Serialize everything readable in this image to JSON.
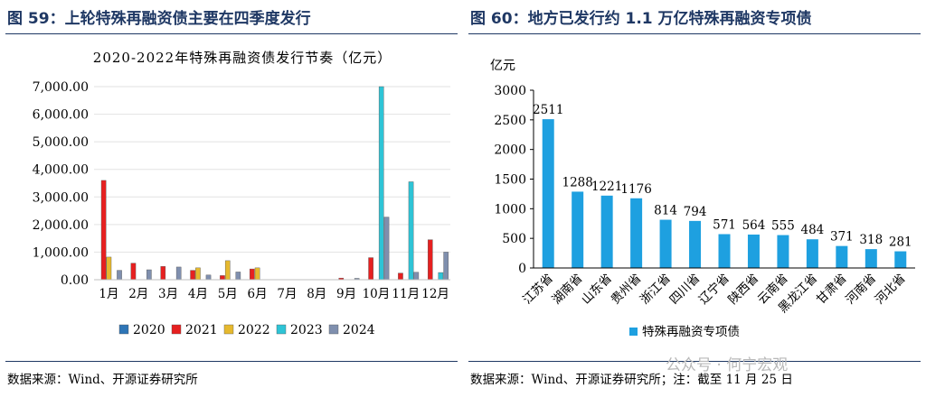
{
  "panel_left": {
    "figure_title": "图 59：上轮特殊再融资债主要在四季度发行",
    "source_note": "数据来源：Wind、开源证券研究所"
  },
  "panel_right": {
    "figure_title": "图 60：地方已发行约 1.1 万亿特殊再融资专项债",
    "source_note": "数据来源：Wind、开源证券研究所；注：截至 11 月 25 日"
  },
  "watermark": "公众号 · 何宁宏观",
  "chart_data": [
    {
      "type": "bar",
      "title": "2020-2022年特殊再融资债发行节奏（亿元）",
      "categories": [
        "1月",
        "2月",
        "3月",
        "4月",
        "5月",
        "6月",
        "7月",
        "8月",
        "9月",
        "10月",
        "11月",
        "12月"
      ],
      "ylim": [
        0,
        7000
      ],
      "yticks": [
        "0.00",
        "1,000.00",
        "2,000.00",
        "3,000.00",
        "4,000.00",
        "5,000.00",
        "6,000.00",
        "7,000.00"
      ],
      "legend_position": "bottom",
      "series": [
        {
          "name": "2020",
          "color": "#2e75b6",
          "values": [
            0,
            0,
            0,
            0,
            0,
            0,
            0,
            0,
            0,
            0,
            0,
            0
          ]
        },
        {
          "name": "2021",
          "color": "#e62020",
          "values": [
            3600,
            600,
            480,
            340,
            150,
            390,
            0,
            0,
            60,
            800,
            240,
            1450
          ]
        },
        {
          "name": "2022",
          "color": "#e6b92e",
          "values": [
            820,
            0,
            0,
            430,
            690,
            430,
            0,
            0,
            0,
            0,
            0,
            0
          ]
        },
        {
          "name": "2023",
          "color": "#2ec4d6",
          "values": [
            0,
            0,
            0,
            0,
            0,
            0,
            0,
            0,
            0,
            7000,
            3550,
            260
          ]
        },
        {
          "name": "2024",
          "color": "#7f8fae",
          "values": [
            340,
            360,
            460,
            170,
            280,
            0,
            0,
            0,
            50,
            2270,
            270,
            1000
          ]
        }
      ]
    },
    {
      "type": "bar",
      "ylabel": "亿元",
      "categories": [
        "江苏省",
        "湖南省",
        "山东省",
        "贵州省",
        "浙江省",
        "四川省",
        "辽宁省",
        "陕西省",
        "云南省",
        "黑龙江省",
        "甘肃省",
        "河南省",
        "河北省"
      ],
      "values": [
        2511,
        1288,
        1221,
        1176,
        814,
        794,
        571,
        564,
        555,
        484,
        371,
        318,
        281
      ],
      "ylim": [
        0,
        3000
      ],
      "yticks": [
        "0",
        "500",
        "1000",
        "1500",
        "2000",
        "2500",
        "3000"
      ],
      "series": [
        {
          "name": "特殊再融资专项债",
          "color": "#1ea0e0"
        }
      ],
      "legend_position": "bottom"
    }
  ]
}
